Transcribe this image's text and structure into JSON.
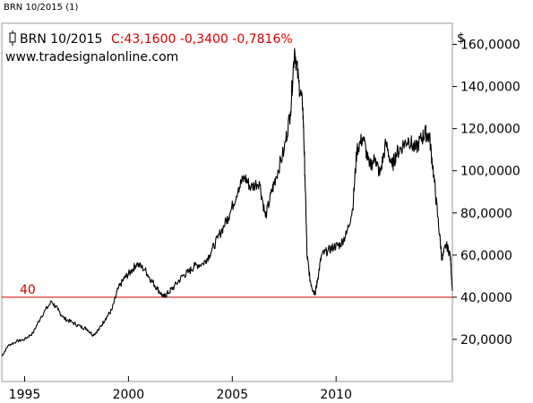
{
  "window": {
    "title": "BRN 10/2015 (1)"
  },
  "legend": {
    "symbol": "BRN 10/2015",
    "quote": "C:43,1600 -0,3400 -0,7816%",
    "source": "www.tradesignalonline.com",
    "quote_color": "#d40000"
  },
  "axes": {
    "currency": "$"
  },
  "chart_data": {
    "type": "line",
    "x_ticks": [
      "1995",
      "2000",
      "2005",
      "2010"
    ],
    "y_ticks": [
      "20,0000",
      "40,0000",
      "60,0000",
      "80,0000",
      "100,0000",
      "120,0000",
      "140,0000",
      "160,0000"
    ],
    "xlim": [
      1993.9,
      2015.6
    ],
    "ylim": [
      0,
      170
    ],
    "grid": false,
    "reference_line": {
      "label": "40",
      "value": 40,
      "color": "#d40000"
    },
    "series": [
      {
        "color": "#000000",
        "x": [
          1993.9,
          1994.2,
          1994.6,
          1995.0,
          1995.4,
          1995.8,
          1996.3,
          1996.6,
          1996.9,
          1997.3,
          1997.7,
          1998.0,
          1998.3,
          1998.6,
          1998.9,
          1999.2,
          1999.5,
          1999.8,
          2000.1,
          2000.4,
          2000.8,
          2001.1,
          2001.4,
          2001.7,
          2001.9,
          2002.2,
          2002.6,
          2002.9,
          2003.2,
          2003.6,
          2003.9,
          2004.3,
          2004.7,
          2004.9,
          2005.3,
          2005.6,
          2005.9,
          2006.3,
          2006.6,
          2006.9,
          2007.1,
          2007.5,
          2007.8,
          2008.0,
          2008.2,
          2008.4,
          2008.5,
          2008.6,
          2008.75,
          2008.9,
          2009.0,
          2009.1,
          2009.3,
          2009.6,
          2009.9,
          2010.2,
          2010.5,
          2010.8,
          2011.0,
          2011.3,
          2011.6,
          2011.9,
          2012.1,
          2012.4,
          2012.7,
          2012.9,
          2013.2,
          2013.5,
          2013.8,
          2014.1,
          2014.3,
          2014.5,
          2014.7,
          2014.9,
          2015.1,
          2015.3,
          2015.5,
          2015.6
        ],
        "y": [
          12,
          17,
          19,
          20,
          23,
          31,
          38,
          34,
          30,
          28,
          26,
          25,
          22,
          25,
          30,
          34,
          44,
          49,
          52,
          56,
          53,
          48,
          44,
          40,
          42,
          45,
          50,
          52,
          55,
          56,
          60,
          68,
          76,
          80,
          92,
          97,
          92,
          95,
          78,
          90,
          97,
          110,
          128,
          158,
          142,
          130,
          98,
          60,
          48,
          43,
          42,
          48,
          60,
          62,
          64,
          65,
          70,
          82,
          110,
          116,
          102,
          106,
          98,
          113,
          102,
          108,
          112,
          115,
          110,
          115,
          118,
          116,
          98,
          78,
          58,
          65,
          60,
          43
        ]
      }
    ]
  }
}
